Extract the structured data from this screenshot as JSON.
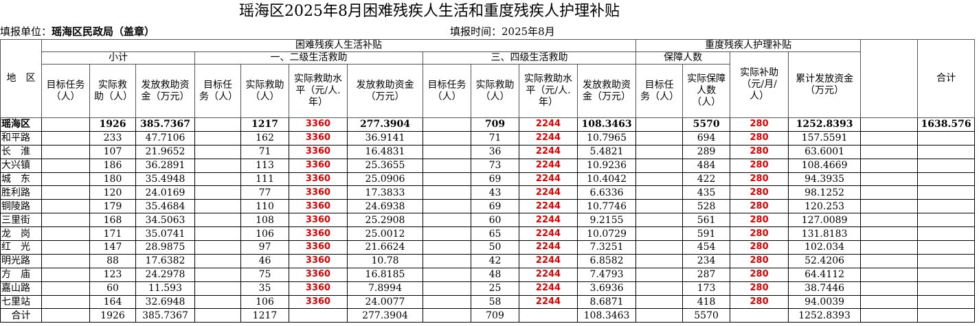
{
  "title": "瑶海区2025年8月困难残疾人生活和重度残疾人护理补贴",
  "unit_label": "填报单位：",
  "unit_value": "瑶海区民政局（盖章）",
  "report_time": "填报时间：2025年8月",
  "header": {
    "region": "地　区",
    "group1": "困难残疾人生活补贴",
    "group2": "重度残疾人护理补贴",
    "total": "合计",
    "subtotal": "小计",
    "level12": "一、二级生活救助",
    "level34": "三、四级生活救助",
    "guarantee": "保障人数",
    "subsidy": "实际补助（元/月/人）",
    "cumulative": "累计发放资金（万元）",
    "cols": [
      "目标任务（人）",
      "实际救助（人）",
      "发放救助资金（万元）",
      "目标任务（人）",
      "实际救助（人）",
      "实际救助水平（元/人.年）",
      "发放救助资金（万元）",
      "目标任务（人）",
      "实际救助（人）",
      "实际救助水平（元/人.年）",
      "发放救助资金（万元）",
      "目标任务（人）",
      "实际保障人数（人）"
    ]
  },
  "rows": [
    [
      "瑶海区",
      null,
      1926,
      "385.7367",
      null,
      1217,
      3360,
      "277.3904",
      null,
      709,
      2244,
      "108.3463",
      null,
      5570,
      280,
      "1252.8393",
      null,
      "1638.576"
    ],
    [
      "和平路",
      null,
      233,
      "47.7106",
      null,
      162,
      3360,
      "36.9141",
      null,
      71,
      2244,
      "10.7965",
      null,
      694,
      280,
      "157.5591",
      null,
      null
    ],
    [
      "长　淮",
      null,
      107,
      "21.9652",
      null,
      71,
      3360,
      "16.4831",
      null,
      36,
      2244,
      "5.4821",
      null,
      289,
      280,
      "63.6001",
      null,
      null
    ],
    [
      "大兴镇",
      null,
      186,
      "36.2891",
      null,
      113,
      3360,
      "25.3655",
      null,
      73,
      2244,
      "10.9236",
      null,
      484,
      280,
      "108.4669",
      null,
      null
    ],
    [
      "城　东",
      null,
      180,
      "35.4948",
      null,
      111,
      3360,
      "25.0906",
      null,
      69,
      2244,
      "10.4042",
      null,
      422,
      280,
      "94.3935",
      null,
      null
    ],
    [
      "胜利路",
      null,
      120,
      "24.0169",
      null,
      77,
      3360,
      "17.3833",
      null,
      43,
      2244,
      "6.6336",
      null,
      435,
      280,
      "98.1252",
      null,
      null
    ],
    [
      "铜陵路",
      null,
      179,
      "35.4684",
      null,
      110,
      3360,
      "24.6938",
      null,
      69,
      2244,
      "10.7746",
      null,
      528,
      280,
      "120.253",
      null,
      null
    ],
    [
      "三里街",
      null,
      168,
      "34.5063",
      null,
      108,
      3360,
      "25.2908",
      null,
      60,
      2244,
      "9.2155",
      null,
      561,
      280,
      "127.0089",
      null,
      null
    ],
    [
      "龙　岗",
      null,
      171,
      "35.0741",
      null,
      106,
      3360,
      "25.0012",
      null,
      65,
      2244,
      "10.0729",
      null,
      591,
      280,
      "131.8183",
      null,
      null
    ],
    [
      "红　光",
      null,
      147,
      "28.9875",
      null,
      97,
      3360,
      "21.6624",
      null,
      50,
      2244,
      "7.3251",
      null,
      454,
      280,
      "102.034",
      null,
      null
    ],
    [
      "明光路",
      null,
      88,
      "17.6382",
      null,
      46,
      3360,
      "10.78",
      null,
      42,
      2244,
      "6.8582",
      null,
      234,
      280,
      "52.4206",
      null,
      null
    ],
    [
      "方　庙",
      null,
      123,
      "24.2978",
      null,
      75,
      3360,
      "16.8185",
      null,
      48,
      2244,
      "7.4793",
      null,
      287,
      280,
      "64.4112",
      null,
      null
    ],
    [
      "嘉山路",
      null,
      60,
      "11.593",
      null,
      35,
      3360,
      "7.8994",
      null,
      25,
      2244,
      "3.6936",
      null,
      173,
      280,
      "38.7446",
      null,
      null
    ],
    [
      "七里站",
      null,
      164,
      "32.6948",
      null,
      106,
      3360,
      "24.0077",
      null,
      58,
      2244,
      "8.6871",
      null,
      418,
      280,
      "94.0039",
      null,
      null
    ],
    [
      "合计",
      null,
      1926,
      "385.7367",
      null,
      1217,
      null,
      "277.3904",
      null,
      709,
      null,
      "108.3463",
      null,
      5570,
      null,
      "1252.8393",
      null,
      null
    ]
  ]
}
